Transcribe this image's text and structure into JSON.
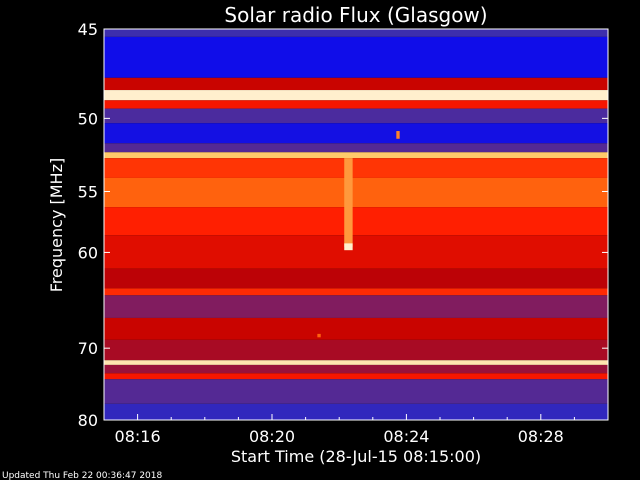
{
  "chart_data": {
    "type": "heatmap",
    "title": "Solar radio Flux (Glasgow)",
    "xlabel": "Start Time (28-Jul-15 08:15:00)",
    "ylabel": "Frequency [MHz]",
    "x_ticks": [
      {
        "label": "08:16",
        "value": 1
      },
      {
        "label": "08:20",
        "value": 5
      },
      {
        "label": "08:24",
        "value": 9
      },
      {
        "label": "08:28",
        "value": 13
      }
    ],
    "xlim": [
      0,
      15
    ],
    "y_ticks": [
      45,
      50,
      55,
      60,
      70,
      80
    ],
    "ylim": [
      45,
      80
    ],
    "y_scale": "reciprocal",
    "colorscale": [
      "#0000ff",
      "#3a2fb0",
      "#7a1f6a",
      "#c00000",
      "#ff1a00",
      "#ff6a10",
      "#ffd070",
      "#ffffff"
    ],
    "bands": [
      {
        "f0": 45.0,
        "f1": 45.4,
        "level": 0.15
      },
      {
        "f0": 45.4,
        "f1": 47.6,
        "level": 0.04
      },
      {
        "f0": 47.6,
        "f1": 48.3,
        "level": 0.45
      },
      {
        "f0": 48.3,
        "f1": 48.9,
        "level": 0.95
      },
      {
        "f0": 48.9,
        "f1": 49.4,
        "level": 0.55
      },
      {
        "f0": 49.4,
        "f1": 50.3,
        "level": 0.18
      },
      {
        "f0": 50.3,
        "f1": 51.6,
        "level": 0.05
      },
      {
        "f0": 51.6,
        "f1": 52.2,
        "level": 0.2
      },
      {
        "f0": 52.2,
        "f1": 52.6,
        "level": 0.85
      },
      {
        "f0": 52.6,
        "f1": 54.0,
        "level": 0.62
      },
      {
        "f0": 54.0,
        "f1": 56.2,
        "level": 0.7
      },
      {
        "f0": 56.2,
        "f1": 58.5,
        "level": 0.58
      },
      {
        "f0": 58.5,
        "f1": 61.5,
        "level": 0.5
      },
      {
        "f0": 61.5,
        "f1": 63.4,
        "level": 0.42
      },
      {
        "f0": 63.4,
        "f1": 64.1,
        "level": 0.6
      },
      {
        "f0": 64.1,
        "f1": 66.5,
        "level": 0.3
      },
      {
        "f0": 66.5,
        "f1": 69.0,
        "level": 0.45
      },
      {
        "f0": 69.0,
        "f1": 71.5,
        "level": 0.38
      },
      {
        "f0": 71.5,
        "f1": 72.1,
        "level": 0.92
      },
      {
        "f0": 72.1,
        "f1": 73.2,
        "level": 0.35
      },
      {
        "f0": 73.2,
        "f1": 74.0,
        "level": 0.55
      },
      {
        "f0": 74.0,
        "f1": 77.5,
        "level": 0.2
      },
      {
        "f0": 77.5,
        "f1": 80.0,
        "level": 0.12
      }
    ],
    "features": [
      {
        "t0": 7.15,
        "t1": 7.4,
        "f0": 52.6,
        "f1": 59.5,
        "level": 0.78
      },
      {
        "t0": 7.15,
        "t1": 7.4,
        "f0": 59.2,
        "f1": 59.8,
        "level": 0.95
      },
      {
        "t0": 8.7,
        "t1": 8.8,
        "f0": 50.8,
        "f1": 51.3,
        "level": 0.75
      },
      {
        "t0": 6.35,
        "t1": 6.45,
        "f0": 68.3,
        "f1": 68.7,
        "level": 0.7
      }
    ]
  },
  "footer": {
    "updated": "Updated Thu Feb 22 00:36:47 2018"
  }
}
